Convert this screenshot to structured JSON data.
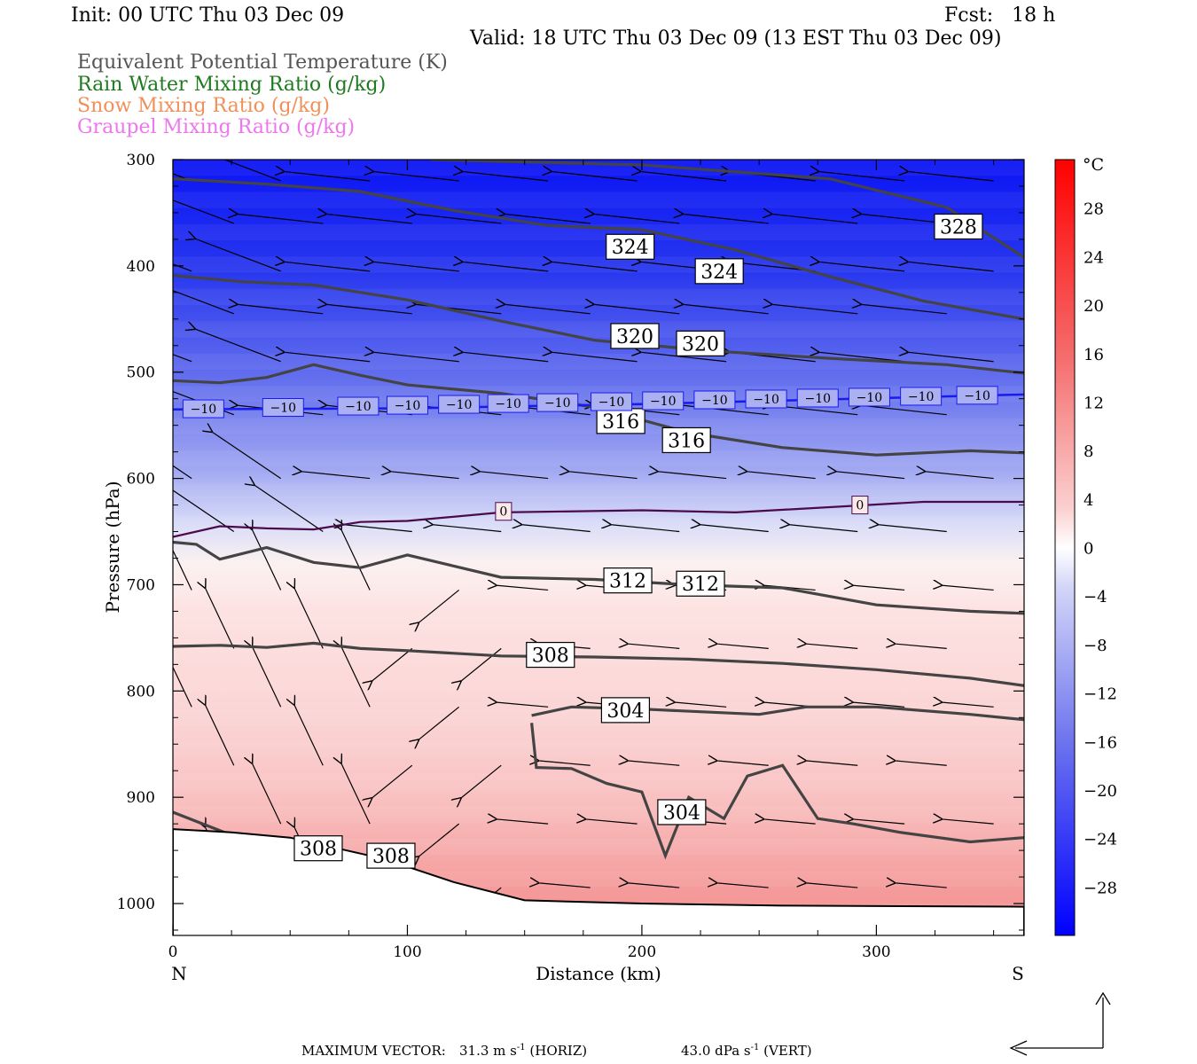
{
  "header": {
    "init": "Init: 00 UTC Thu 03 Dec 09",
    "fcst": "Fcst:   18 h",
    "valid": "Valid: 18 UTC Thu 03 Dec 09 (13 EST Thu 03 Dec 09)"
  },
  "legend": [
    {
      "label": "Equivalent Potential Temperature (K)",
      "color": "#555555"
    },
    {
      "label": "Rain Water Mixing Ratio (g/kg)",
      "color": "#1f7a1f"
    },
    {
      "label": "Snow Mixing Ratio (g/kg)",
      "color": "#f0905a"
    },
    {
      "label": "Graupel Mixing Ratio (g/kg)",
      "color": "#ee77ee"
    }
  ],
  "footer": {
    "max_vector_label": "MAXIMUM VECTOR:",
    "horiz": "31.3 m s",
    "horiz_exp": "-1",
    "horiz_tag": "(HORIZ)",
    "vert": "43.0 dPa s",
    "vert_exp": "-1",
    "vert_tag": "(VERT)"
  },
  "chart_data": {
    "type": "cross-section",
    "xlabel": "Distance (km)",
    "ylabel": "Pressure (hPa)",
    "xlim": [
      0,
      363
    ],
    "ylim": [
      1030,
      300
    ],
    "x_ticks": [
      0,
      100,
      200,
      300
    ],
    "y_ticks": [
      300,
      400,
      500,
      600,
      700,
      800,
      900,
      1000
    ],
    "x_end_labels": {
      "left": "N",
      "right": "S"
    },
    "colorbar": {
      "unit": "°C",
      "range": [
        -32,
        32
      ],
      "tick_values": [
        28,
        24,
        20,
        16,
        12,
        8,
        4,
        0,
        -4,
        -8,
        -12,
        -16,
        -20,
        -24,
        -28
      ],
      "tick_labels": [
        "28",
        "24",
        "20",
        "16",
        "12",
        "8",
        "4",
        "0",
        "−4",
        "−8",
        "−12",
        "−16",
        "−20",
        "−24",
        "−28"
      ]
    },
    "isotherm_bottom_hpa": [
      [
        0,
        540
      ],
      [
        360,
        540
      ]
    ],
    "theta_e_contours": [
      {
        "level": 328,
        "points": [
          [
            110,
            300
          ],
          [
            200,
            305
          ],
          [
            280,
            318
          ],
          [
            330,
            345
          ],
          [
            363,
            392
          ]
        ]
      },
      {
        "level": 324,
        "points": [
          [
            0,
            318
          ],
          [
            40,
            323
          ],
          [
            80,
            330
          ],
          [
            120,
            348
          ],
          [
            160,
            362
          ],
          [
            200,
            366
          ],
          [
            240,
            385
          ],
          [
            280,
            410
          ],
          [
            320,
            433
          ],
          [
            363,
            450
          ]
        ]
      },
      {
        "level": 320,
        "points": [
          [
            0,
            409
          ],
          [
            30,
            415
          ],
          [
            60,
            418
          ],
          [
            100,
            432
          ],
          [
            140,
            452
          ],
          [
            180,
            470
          ],
          [
            230,
            480
          ],
          [
            280,
            487
          ],
          [
            330,
            493
          ],
          [
            363,
            501
          ]
        ]
      },
      {
        "level": 316,
        "points": [
          [
            0,
            508
          ],
          [
            20,
            510
          ],
          [
            40,
            505
          ],
          [
            60,
            493
          ],
          [
            80,
            503
          ],
          [
            100,
            512
          ],
          [
            140,
            520
          ],
          [
            180,
            533
          ],
          [
            220,
            557
          ],
          [
            260,
            571
          ],
          [
            300,
            578
          ],
          [
            340,
            574
          ],
          [
            363,
            576
          ]
        ]
      },
      {
        "level": 312,
        "points": [
          [
            0,
            660
          ],
          [
            10,
            662
          ],
          [
            20,
            676
          ],
          [
            40,
            665
          ],
          [
            60,
            679
          ],
          [
            80,
            684
          ],
          [
            100,
            672
          ],
          [
            140,
            693
          ],
          [
            180,
            695
          ],
          [
            220,
            700
          ],
          [
            260,
            703
          ],
          [
            300,
            719
          ],
          [
            340,
            725
          ],
          [
            363,
            727
          ]
        ]
      },
      {
        "level": 308,
        "points": [
          [
            0,
            758
          ],
          [
            20,
            757
          ],
          [
            40,
            759
          ],
          [
            60,
            755
          ],
          [
            80,
            760
          ],
          [
            100,
            762
          ],
          [
            140,
            767
          ],
          [
            180,
            768
          ],
          [
            220,
            770
          ],
          [
            260,
            774
          ],
          [
            300,
            780
          ],
          [
            340,
            788
          ],
          [
            363,
            795
          ]
        ]
      },
      {
        "level": 304,
        "points": [
          [
            153,
            823
          ],
          [
            170,
            815
          ],
          [
            200,
            817
          ],
          [
            230,
            820
          ],
          [
            250,
            822
          ],
          [
            270,
            815
          ],
          [
            300,
            815
          ],
          [
            340,
            822
          ],
          [
            363,
            827
          ]
        ]
      },
      {
        "level": 304,
        "points": [
          [
            153,
            830
          ],
          [
            155,
            872
          ],
          [
            170,
            873
          ],
          [
            185,
            887
          ],
          [
            200,
            895
          ],
          [
            210,
            955
          ],
          [
            220,
            900
          ],
          [
            235,
            920
          ],
          [
            245,
            880
          ],
          [
            260,
            870
          ],
          [
            275,
            920
          ],
          [
            290,
            925
          ],
          [
            310,
            933
          ],
          [
            340,
            942
          ],
          [
            363,
            938
          ]
        ]
      },
      {
        "level": 308,
        "points": [
          [
            0,
            914
          ],
          [
            30,
            940
          ],
          [
            60,
            950
          ],
          [
            90,
            965
          ],
          [
            110,
            975
          ]
        ]
      }
    ],
    "contour_labels": [
      {
        "text": "328",
        "x": 335,
        "p": 363
      },
      {
        "text": "324",
        "x": 195,
        "p": 382
      },
      {
        "text": "324",
        "x": 233,
        "p": 405
      },
      {
        "text": "320",
        "x": 197,
        "p": 466
      },
      {
        "text": "320",
        "x": 225,
        "p": 473
      },
      {
        "text": "316",
        "x": 191,
        "p": 546
      },
      {
        "text": "316",
        "x": 219,
        "p": 564
      },
      {
        "text": "312",
        "x": 194,
        "p": 696
      },
      {
        "text": "312",
        "x": 225,
        "p": 699
      },
      {
        "text": "308",
        "x": 161,
        "p": 766
      },
      {
        "text": "304",
        "x": 193,
        "p": 818
      },
      {
        "text": "304",
        "x": 217,
        "p": 914
      },
      {
        "text": "308",
        "x": 62,
        "p": 948
      },
      {
        "text": "308",
        "x": 93,
        "p": 955
      }
    ],
    "minus10_labels": [
      {
        "text": "−10",
        "x": 13
      },
      {
        "text": "−10",
        "x": 47
      },
      {
        "text": "−10",
        "x": 79
      },
      {
        "text": "−10",
        "x": 100
      },
      {
        "text": "−10",
        "x": 122
      },
      {
        "text": "−10",
        "x": 143
      },
      {
        "text": "−10",
        "x": 164
      },
      {
        "text": "−10",
        "x": 187
      },
      {
        "text": "−10",
        "x": 209
      },
      {
        "text": "−10",
        "x": 231
      },
      {
        "text": "−10",
        "x": 253
      },
      {
        "text": "−10",
        "x": 275
      },
      {
        "text": "−10",
        "x": 297
      },
      {
        "text": "−10",
        "x": 319
      },
      {
        "text": "−10",
        "x": 343
      }
    ],
    "zero_isotherm": [
      [
        0,
        655
      ],
      [
        20,
        645
      ],
      [
        40,
        647
      ],
      [
        60,
        648
      ],
      [
        80,
        641
      ],
      [
        100,
        640
      ],
      [
        140,
        632
      ],
      [
        200,
        630
      ],
      [
        240,
        632
      ],
      [
        280,
        627
      ],
      [
        320,
        622
      ],
      [
        363,
        622
      ]
    ],
    "zero_labels": [
      {
        "text": "0",
        "x": 141,
        "p": 631
      },
      {
        "text": "0",
        "x": 293,
        "p": 625
      }
    ],
    "ground_surface": [
      [
        0,
        930
      ],
      [
        25,
        933
      ],
      [
        50,
        938
      ],
      [
        90,
        958
      ],
      [
        120,
        980
      ],
      [
        150,
        997
      ],
      [
        200,
        1000
      ],
      [
        260,
        1002
      ],
      [
        363,
        1003
      ]
    ]
  }
}
